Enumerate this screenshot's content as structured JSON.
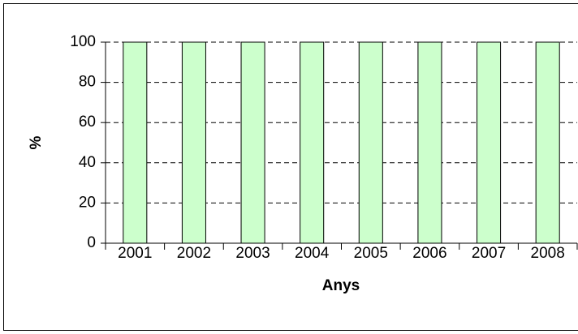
{
  "chart_data": {
    "type": "bar",
    "x_label": "Anys",
    "y_label": "%",
    "categories": [
      "2001",
      "2002",
      "2003",
      "2004",
      "2005",
      "2006",
      "2007",
      "2008"
    ],
    "values": [
      100,
      100,
      100,
      100,
      100,
      100,
      100,
      100
    ],
    "color": "#ccffcc",
    "ylim": [
      0,
      100
    ],
    "yticks": [
      0,
      20,
      40,
      60,
      80,
      100
    ],
    "grid": true
  }
}
